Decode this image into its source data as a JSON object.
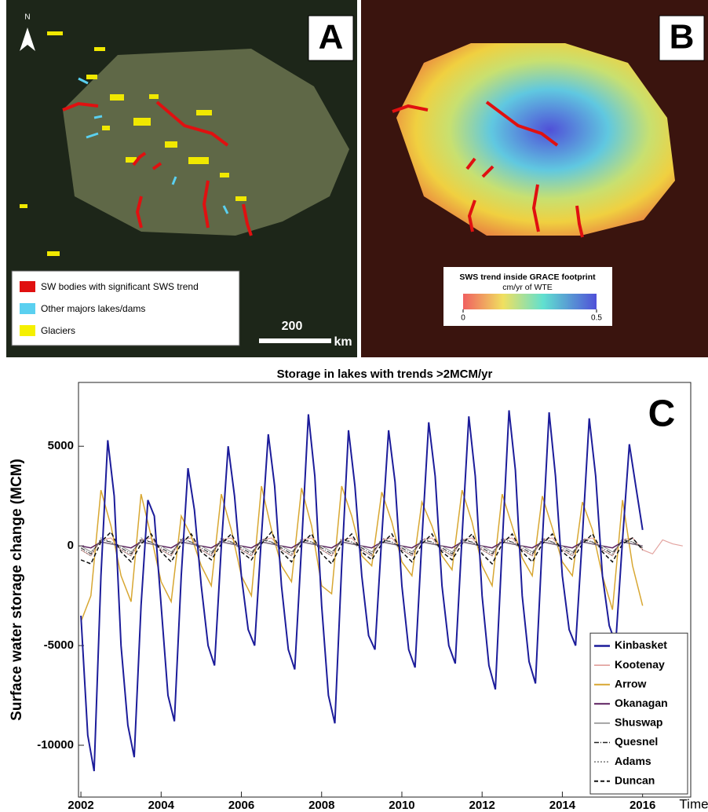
{
  "panels": [
    {
      "label": "A",
      "north": "N",
      "legend": [
        {
          "label": "SW bodies with significant SWS trend",
          "color": "#e01010"
        },
        {
          "label": "Other majors lakes/dams",
          "color": "#5ad0f0"
        },
        {
          "label": "Glaciers",
          "color": "#f5f000"
        }
      ],
      "scale_bar": {
        "value": 200,
        "unit": "km"
      }
    },
    {
      "label": "B",
      "colorbar": {
        "title": "SWS trend inside GRACE footprint",
        "subtitle": "cm/yr of WTE",
        "ticks": [
          0,
          0.5
        ]
      }
    }
  ],
  "chart_data": {
    "type": "line",
    "title": "Storage in lakes with trends >2MCM/yr",
    "label": "C",
    "xlabel": "Time",
    "ylabel": "Surface water storage change (MCM)",
    "xlim": [
      2001.94,
      2017.2
    ],
    "xticks": [
      2002,
      2004,
      2006,
      2008,
      2010,
      2012,
      2014,
      2016
    ],
    "ylim": [
      -12600,
      8200
    ],
    "yticks": [
      -10000,
      -5000,
      0,
      5000
    ],
    "grid": false,
    "legend": "lower right",
    "series": [
      {
        "name": "Kinbasket",
        "color": "#1c1c9a",
        "width": 2,
        "dash": "",
        "x": [
          2002,
          2002.17,
          2002.33,
          2002.5,
          2002.67,
          2002.83,
          2003,
          2003.17,
          2003.33,
          2003.5,
          2003.67,
          2003.83,
          2004,
          2004.17,
          2004.33,
          2004.5,
          2004.67,
          2004.83,
          2005,
          2005.17,
          2005.33,
          2005.5,
          2005.67,
          2005.83,
          2006,
          2006.17,
          2006.33,
          2006.5,
          2006.67,
          2006.83,
          2007,
          2007.17,
          2007.33,
          2007.5,
          2007.67,
          2007.83,
          2008,
          2008.17,
          2008.33,
          2008.5,
          2008.67,
          2008.83,
          2009,
          2009.17,
          2009.33,
          2009.5,
          2009.67,
          2009.83,
          2010,
          2010.17,
          2010.33,
          2010.5,
          2010.67,
          2010.83,
          2011,
          2011.17,
          2011.33,
          2011.5,
          2011.67,
          2011.83,
          2012,
          2012.17,
          2012.33,
          2012.5,
          2012.67,
          2012.83,
          2013,
          2013.17,
          2013.33,
          2013.5,
          2013.67,
          2013.83,
          2014,
          2014.17,
          2014.33,
          2014.5,
          2014.67,
          2014.83,
          2015,
          2015.17,
          2015.33,
          2015.5,
          2015.67,
          2015.83,
          2016
        ],
        "values": [
          -3500,
          -9500,
          -11300,
          -1500,
          5300,
          2500,
          -5000,
          -9000,
          -10600,
          -3000,
          2300,
          1500,
          -3000,
          -7500,
          -8800,
          -1500,
          3900,
          1800,
          -2000,
          -5000,
          -6000,
          0,
          5000,
          2500,
          -1500,
          -4200,
          -5000,
          500,
          5600,
          3000,
          -2000,
          -5200,
          -6200,
          0,
          6600,
          3500,
          -3000,
          -7500,
          -8900,
          -1000,
          5800,
          3000,
          -1500,
          -4500,
          -5200,
          500,
          5800,
          3200,
          -2000,
          -5200,
          -6100,
          300,
          6200,
          3500,
          -2000,
          -5000,
          -5900,
          500,
          6500,
          3500,
          -2500,
          -6000,
          -7200,
          0,
          6800,
          3800,
          -2500,
          -5800,
          -6900,
          200,
          6700,
          3500,
          -1500,
          -4200,
          -5000,
          500,
          6400,
          3500,
          -1500,
          -4000,
          -4900,
          300,
          5100,
          3000,
          800
        ]
      },
      {
        "name": "Kootenay",
        "color": "#e3a4a0",
        "width": 1.2,
        "dash": "",
        "x": [
          2002,
          2002.25,
          2002.5,
          2002.75,
          2003,
          2003.25,
          2003.5,
          2003.75,
          2004,
          2004.25,
          2004.5,
          2004.75,
          2005,
          2005.25,
          2005.5,
          2005.75,
          2006,
          2006.25,
          2006.5,
          2006.75,
          2007,
          2007.25,
          2007.5,
          2007.75,
          2008,
          2008.25,
          2008.5,
          2008.75,
          2009,
          2009.25,
          2009.5,
          2009.75,
          2010,
          2010.25,
          2010.5,
          2010.75,
          2011,
          2011.25,
          2011.5,
          2011.75,
          2012,
          2012.25,
          2012.5,
          2012.75,
          2013,
          2013.25,
          2013.5,
          2013.75,
          2014,
          2014.25,
          2014.5,
          2014.75,
          2015,
          2015.25,
          2015.5,
          2015.75,
          2016,
          2016.25,
          2016.5,
          2016.75,
          2017
        ],
        "values": [
          -200,
          -500,
          300,
          400,
          -200,
          -500,
          300,
          400,
          -200,
          -500,
          300,
          400,
          -200,
          -500,
          300,
          400,
          -200,
          -500,
          300,
          400,
          -200,
          -500,
          300,
          400,
          -200,
          -500,
          300,
          400,
          -200,
          -500,
          300,
          400,
          -200,
          -500,
          300,
          400,
          -200,
          -500,
          300,
          400,
          -200,
          -500,
          300,
          400,
          -200,
          -500,
          300,
          400,
          -200,
          -500,
          300,
          400,
          -200,
          -500,
          300,
          400,
          -200,
          -400,
          300,
          100,
          0
        ]
      },
      {
        "name": "Arrow",
        "color": "#d8a732",
        "width": 1.5,
        "dash": "",
        "x": [
          2002,
          2002.25,
          2002.5,
          2002.75,
          2003,
          2003.25,
          2003.5,
          2003.75,
          2004,
          2004.25,
          2004.5,
          2004.75,
          2005,
          2005.25,
          2005.5,
          2005.75,
          2006,
          2006.25,
          2006.5,
          2006.75,
          2007,
          2007.25,
          2007.5,
          2007.75,
          2008,
          2008.25,
          2008.5,
          2008.75,
          2009,
          2009.25,
          2009.5,
          2009.75,
          2010,
          2010.25,
          2010.5,
          2010.75,
          2011,
          2011.25,
          2011.5,
          2011.75,
          2012,
          2012.25,
          2012.5,
          2012.75,
          2013,
          2013.25,
          2013.5,
          2013.75,
          2014,
          2014.25,
          2014.5,
          2014.75,
          2015,
          2015.25,
          2015.5,
          2015.75,
          2016
        ],
        "values": [
          -3800,
          -2500,
          2800,
          1000,
          -1500,
          -2800,
          2600,
          500,
          -1800,
          -2800,
          1500,
          500,
          -1000,
          -2000,
          2600,
          800,
          -1500,
          -2500,
          3000,
          800,
          -1000,
          -1800,
          2900,
          1000,
          -2000,
          -2400,
          3000,
          1500,
          -500,
          -1000,
          2700,
          1200,
          -800,
          -1500,
          2200,
          1000,
          -500,
          -1200,
          2800,
          1200,
          -1000,
          -2000,
          2600,
          1000,
          -600,
          -1500,
          2500,
          900,
          -800,
          -1500,
          2200,
          800,
          -1500,
          -3200,
          2300,
          -1000,
          -3000
        ]
      },
      {
        "name": "Okanagan",
        "color": "#5b1f5e",
        "width": 1.5,
        "dash": "",
        "x": [
          2002,
          2002.25,
          2002.5,
          2002.75,
          2003,
          2003.25,
          2003.5,
          2003.75,
          2004,
          2004.25,
          2004.5,
          2004.75,
          2005,
          2005.25,
          2005.5,
          2005.75,
          2006,
          2006.25,
          2006.5,
          2006.75,
          2007,
          2007.25,
          2007.5,
          2007.75,
          2008,
          2008.25,
          2008.5,
          2008.75,
          2009,
          2009.25,
          2009.5,
          2009.75,
          2010,
          2010.25,
          2010.5,
          2010.75,
          2011,
          2011.25,
          2011.5,
          2011.75,
          2012,
          2012.25,
          2012.5,
          2012.75,
          2013,
          2013.25,
          2013.5,
          2013.75,
          2014,
          2014.25,
          2014.5,
          2014.75,
          2015,
          2015.25,
          2015.5,
          2015.75,
          2016
        ],
        "values": [
          0,
          -100,
          200,
          100,
          0,
          -100,
          200,
          100,
          0,
          -100,
          200,
          100,
          0,
          -100,
          200,
          100,
          0,
          -100,
          200,
          100,
          0,
          -100,
          200,
          100,
          0,
          -100,
          200,
          100,
          0,
          -100,
          200,
          100,
          0,
          -100,
          200,
          100,
          0,
          -100,
          200,
          100,
          0,
          -100,
          200,
          100,
          0,
          -100,
          200,
          100,
          0,
          -100,
          200,
          100,
          0,
          -100,
          200,
          100,
          0
        ]
      },
      {
        "name": "Shuswap",
        "color": "#8a8a8a",
        "width": 1,
        "dash": "",
        "x": [
          2002,
          2002.25,
          2002.5,
          2002.75,
          2003,
          2003.25,
          2003.5,
          2003.75,
          2004,
          2004.25,
          2004.5,
          2004.75,
          2005,
          2005.25,
          2005.5,
          2005.75,
          2006,
          2006.25,
          2006.5,
          2006.75,
          2007,
          2007.25,
          2007.5,
          2007.75,
          2008,
          2008.25,
          2008.5,
          2008.75,
          2009,
          2009.25,
          2009.5,
          2009.75,
          2010,
          2010.25,
          2010.5,
          2010.75,
          2011,
          2011.25,
          2011.5,
          2011.75,
          2012,
          2012.25,
          2012.5,
          2012.75,
          2013,
          2013.25,
          2013.5,
          2013.75,
          2014,
          2014.25,
          2014.5,
          2014.75,
          2015,
          2015.25,
          2015.5,
          2015.75,
          2016
        ],
        "values": [
          0,
          -300,
          200,
          100,
          0,
          -300,
          200,
          100,
          0,
          -300,
          200,
          100,
          0,
          -300,
          200,
          100,
          0,
          -300,
          200,
          100,
          0,
          -300,
          200,
          100,
          0,
          -300,
          200,
          100,
          0,
          -300,
          200,
          100,
          0,
          -300,
          200,
          100,
          0,
          -300,
          200,
          100,
          0,
          -300,
          200,
          100,
          0,
          -300,
          200,
          100,
          0,
          -300,
          200,
          100,
          0,
          -300,
          200,
          100,
          0
        ]
      },
      {
        "name": "Quesnel",
        "color": "#222222",
        "width": 1,
        "dash": "6 2 1 2",
        "x": [
          2002,
          2002.25,
          2002.5,
          2002.75,
          2003,
          2003.25,
          2003.5,
          2003.75,
          2004,
          2004.25,
          2004.5,
          2004.75,
          2005,
          2005.25,
          2005.5,
          2005.75,
          2006,
          2006.25,
          2006.5,
          2006.75,
          2007,
          2007.25,
          2007.5,
          2007.75,
          2008,
          2008.25,
          2008.5,
          2008.75,
          2009,
          2009.25,
          2009.5,
          2009.75,
          2010,
          2010.25,
          2010.5,
          2010.75,
          2011,
          2011.25,
          2011.5,
          2011.75,
          2012,
          2012.25,
          2012.5,
          2012.75,
          2013,
          2013.25,
          2013.5,
          2013.75,
          2014,
          2014.25,
          2014.5,
          2014.75,
          2015,
          2015.25,
          2015.5,
          2015.75,
          2016
        ],
        "values": [
          -100,
          -400,
          300,
          200,
          -100,
          -400,
          300,
          200,
          -100,
          -400,
          300,
          200,
          -100,
          -400,
          300,
          200,
          -100,
          -400,
          300,
          200,
          -100,
          -400,
          300,
          200,
          -100,
          -400,
          300,
          200,
          -100,
          -400,
          300,
          200,
          -100,
          -400,
          300,
          200,
          -100,
          -400,
          300,
          200,
          -100,
          -400,
          300,
          200,
          -100,
          -400,
          300,
          200,
          -100,
          -400,
          300,
          200,
          -100,
          -400,
          300,
          200,
          -100
        ]
      },
      {
        "name": "Adams",
        "color": "#777777",
        "width": 1,
        "dash": "2 2",
        "x": [
          2002,
          2002.25,
          2002.5,
          2002.75,
          2003,
          2003.25,
          2003.5,
          2003.75,
          2004,
          2004.25,
          2004.5,
          2004.75,
          2005,
          2005.25,
          2005.5,
          2005.75,
          2006,
          2006.25,
          2006.5,
          2006.75,
          2007,
          2007.25,
          2007.5,
          2007.75,
          2008,
          2008.25,
          2008.5,
          2008.75,
          2009,
          2009.25,
          2009.5,
          2009.75,
          2010,
          2010.25,
          2010.5,
          2010.75,
          2011,
          2011.25,
          2011.5,
          2011.75,
          2012,
          2012.25,
          2012.5,
          2012.75,
          2013,
          2013.25,
          2013.5,
          2013.75,
          2014,
          2014.25,
          2014.5,
          2014.75,
          2015,
          2015.25,
          2015.5,
          2015.75,
          2016
        ],
        "values": [
          -200,
          -500,
          400,
          200,
          -200,
          -500,
          400,
          200,
          -200,
          -500,
          400,
          200,
          -200,
          -500,
          400,
          200,
          -200,
          -500,
          400,
          200,
          -200,
          -500,
          400,
          200,
          -200,
          -500,
          400,
          200,
          -200,
          -500,
          400,
          200,
          -200,
          -500,
          400,
          200,
          -200,
          -500,
          400,
          200,
          -200,
          -500,
          400,
          200,
          -200,
          -500,
          400,
          200,
          -200,
          -500,
          400,
          200,
          -200,
          -500,
          400,
          200,
          -100
        ]
      },
      {
        "name": "Duncan",
        "color": "#111111",
        "width": 1.5,
        "dash": "5 3",
        "x": [
          2002,
          2002.25,
          2002.5,
          2002.75,
          2003,
          2003.25,
          2003.5,
          2003.75,
          2004,
          2004.25,
          2004.5,
          2004.75,
          2005,
          2005.25,
          2005.5,
          2005.75,
          2006,
          2006.25,
          2006.5,
          2006.75,
          2007,
          2007.25,
          2007.5,
          2007.75,
          2008,
          2008.25,
          2008.5,
          2008.75,
          2009,
          2009.25,
          2009.5,
          2009.75,
          2010,
          2010.25,
          2010.5,
          2010.75,
          2011,
          2011.25,
          2011.5,
          2011.75,
          2012,
          2012.25,
          2012.5,
          2012.75,
          2013,
          2013.25,
          2013.5,
          2013.75,
          2014,
          2014.25,
          2014.5,
          2014.75,
          2015,
          2015.25,
          2015.5,
          2015.75,
          2016
        ],
        "values": [
          -700,
          -900,
          200,
          700,
          -300,
          -800,
          100,
          600,
          -300,
          -800,
          100,
          600,
          -300,
          -700,
          100,
          600,
          -300,
          -700,
          100,
          700,
          -300,
          -800,
          100,
          600,
          -400,
          -900,
          100,
          600,
          -300,
          -700,
          100,
          600,
          -300,
          -800,
          100,
          600,
          -300,
          -700,
          100,
          600,
          -400,
          -900,
          100,
          600,
          -300,
          -800,
          100,
          600,
          -300,
          -700,
          100,
          600,
          -300,
          -800,
          100,
          400,
          -200
        ]
      }
    ]
  }
}
